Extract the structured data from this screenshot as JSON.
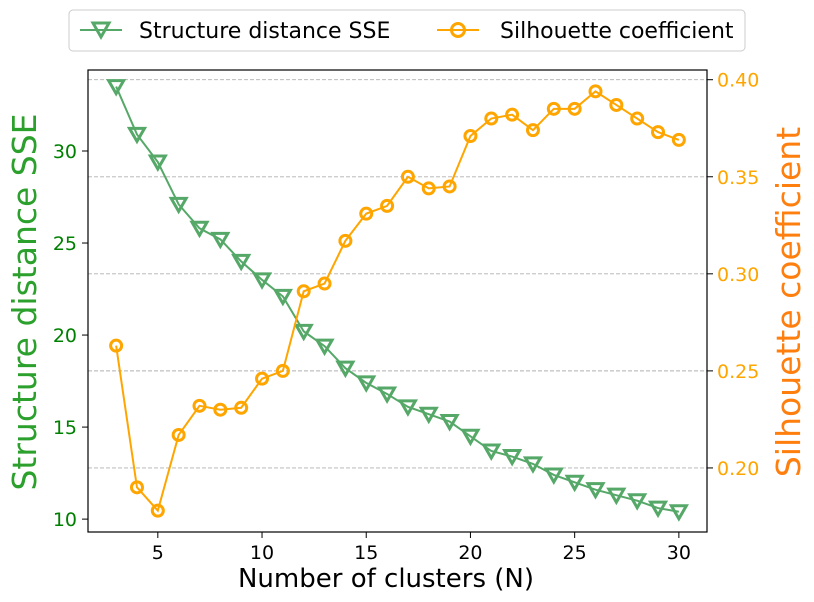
{
  "chart_data": {
    "type": "line",
    "xlabel": "Number of clusters (N)",
    "x": [
      3,
      4,
      5,
      6,
      7,
      8,
      9,
      10,
      11,
      12,
      13,
      14,
      15,
      16,
      17,
      18,
      19,
      20,
      21,
      22,
      23,
      24,
      25,
      26,
      27,
      28,
      29,
      30
    ],
    "xlim": [
      1.65,
      31.35
    ],
    "xticks": [
      5,
      10,
      15,
      20,
      25,
      30
    ],
    "grid": "horizontal dashed, right axis",
    "legend_position": "top-center",
    "series": [
      {
        "name": "Structure distance SSE",
        "axis": "left",
        "marker": "triangle-down",
        "color": "#55a868",
        "values": [
          33.5,
          30.9,
          29.4,
          27.1,
          25.8,
          25.2,
          24.0,
          23.0,
          22.1,
          20.2,
          19.4,
          18.2,
          17.4,
          16.8,
          16.1,
          15.7,
          15.3,
          14.5,
          13.7,
          13.4,
          13.0,
          12.4,
          12.0,
          11.6,
          11.3,
          11.0,
          10.6,
          10.4
        ],
        "ylabel": "Structure distance SSE",
        "ylim": [
          9.3,
          34.4
        ],
        "yticks": [
          10,
          15,
          20,
          25,
          30
        ],
        "tick_color": "#008000",
        "label_color": "#2ca02c"
      },
      {
        "name": "Silhouette coefficient",
        "axis": "right",
        "marker": "circle",
        "color": "#ffa500",
        "values": [
          0.263,
          0.19,
          0.178,
          0.217,
          0.232,
          0.23,
          0.231,
          0.246,
          0.25,
          0.291,
          0.295,
          0.317,
          0.331,
          0.335,
          0.35,
          0.344,
          0.345,
          0.371,
          0.38,
          0.382,
          0.374,
          0.385,
          0.385,
          0.394,
          0.387,
          0.38,
          0.373,
          0.369
        ],
        "ylabel": "Silhouette coefficient",
        "ylim": [
          0.167,
          0.405
        ],
        "yticks": [
          0.2,
          0.25,
          0.3,
          0.35,
          0.4
        ],
        "tick_labels": [
          "0.20",
          "0.25",
          "0.30",
          "0.35",
          "0.40"
        ],
        "tick_color": "#ffa500",
        "label_color": "#ff7f0e"
      }
    ]
  }
}
